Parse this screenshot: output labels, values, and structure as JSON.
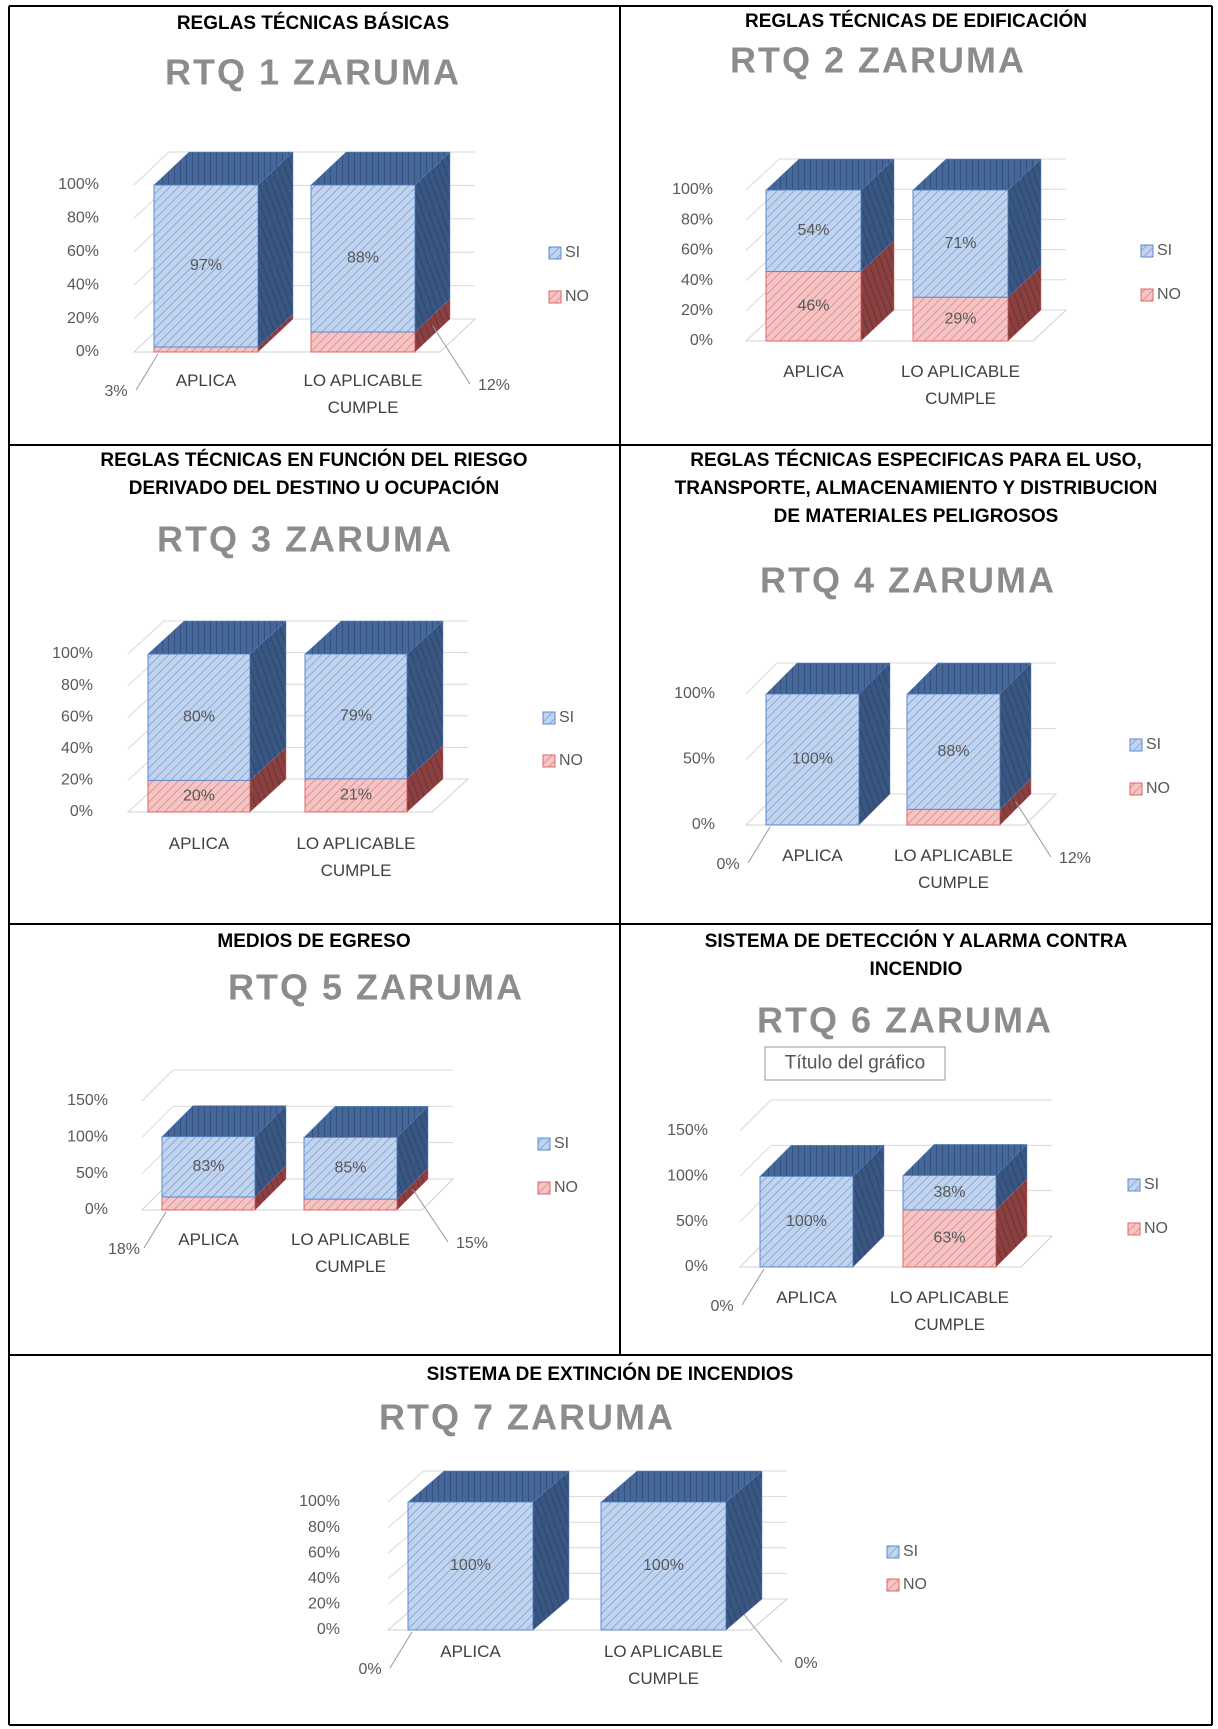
{
  "chart_data": [
    {
      "type": "bar3d",
      "heading": [
        "REGLAS TÉCNICAS BÁSICAS"
      ],
      "title": "RTQ 1 ZARUMA",
      "categories": [
        "APLICA",
        "LO APLICABLE CUMPLE"
      ],
      "series": [
        {
          "name": "SI",
          "color": "#5b8bd0",
          "values": [
            97,
            88
          ],
          "value_labels": [
            "97%",
            "88%"
          ]
        },
        {
          "name": "NO",
          "color": "#e06666",
          "values": [
            3,
            12
          ],
          "value_labels": [
            "3%",
            "12%"
          ]
        }
      ],
      "ylim": [
        0,
        100
      ],
      "yticks": [
        {
          "value": 0,
          "label": "0%"
        },
        {
          "value": 20,
          "label": "20%"
        },
        {
          "value": 40,
          "label": "40%"
        },
        {
          "value": 60,
          "label": "60%"
        },
        {
          "value": 80,
          "label": "80%"
        },
        {
          "value": 100,
          "label": "100%"
        }
      ],
      "grid": true,
      "legend": "right"
    },
    {
      "type": "bar3d",
      "heading": [
        "REGLAS TÉCNICAS DE EDIFICACIÓN"
      ],
      "title": "RTQ 2 ZARUMA",
      "categories": [
        "APLICA",
        "LO APLICABLE CUMPLE"
      ],
      "series": [
        {
          "name": "SI",
          "color": "#5b8bd0",
          "values": [
            54,
            71
          ],
          "value_labels": [
            "54%",
            "71%"
          ]
        },
        {
          "name": "NO",
          "color": "#e06666",
          "values": [
            46,
            29
          ],
          "value_labels": [
            "46%",
            "29%"
          ]
        }
      ],
      "ylim": [
        0,
        100
      ],
      "yticks": [
        {
          "value": 0,
          "label": "0%"
        },
        {
          "value": 20,
          "label": "20%"
        },
        {
          "value": 40,
          "label": "40%"
        },
        {
          "value": 60,
          "label": "60%"
        },
        {
          "value": 80,
          "label": "80%"
        },
        {
          "value": 100,
          "label": "100%"
        }
      ],
      "grid": true,
      "legend": "right"
    },
    {
      "type": "bar3d",
      "heading": [
        "REGLAS TÉCNICAS EN FUNCIÓN DEL RIESGO",
        "DERIVADO DEL DESTINO U OCUPACIÓN"
      ],
      "title": "RTQ 3 ZARUMA",
      "categories": [
        "APLICA",
        "LO APLICABLE CUMPLE"
      ],
      "series": [
        {
          "name": "SI",
          "color": "#5b8bd0",
          "values": [
            80,
            79
          ],
          "value_labels": [
            "80%",
            "79%"
          ]
        },
        {
          "name": "NO",
          "color": "#e06666",
          "values": [
            20,
            21
          ],
          "value_labels": [
            "20%",
            "21%"
          ]
        }
      ],
      "ylim": [
        0,
        100
      ],
      "yticks": [
        {
          "value": 0,
          "label": "0%"
        },
        {
          "value": 20,
          "label": "20%"
        },
        {
          "value": 40,
          "label": "40%"
        },
        {
          "value": 60,
          "label": "60%"
        },
        {
          "value": 80,
          "label": "80%"
        },
        {
          "value": 100,
          "label": "100%"
        }
      ],
      "grid": true,
      "legend": "right"
    },
    {
      "type": "bar3d",
      "heading": [
        "REGLAS TÉCNICAS ESPECIFICAS PARA EL USO,",
        "TRANSPORTE, ALMACENAMIENTO Y DISTRIBUCION",
        "DE MATERIALES PELIGROSOS"
      ],
      "title": "RTQ 4 ZARUMA",
      "categories": [
        "APLICA",
        "LO APLICABLE CUMPLE"
      ],
      "series": [
        {
          "name": "SI",
          "color": "#5b8bd0",
          "values": [
            100,
            88
          ],
          "value_labels": [
            "100%",
            "88%"
          ]
        },
        {
          "name": "NO",
          "color": "#e06666",
          "values": [
            0,
            12
          ],
          "value_labels": [
            "0%",
            "12%"
          ]
        }
      ],
      "ylim": [
        0,
        100
      ],
      "yticks": [
        {
          "value": 0,
          "label": "0%"
        },
        {
          "value": 50,
          "label": "50%"
        },
        {
          "value": 100,
          "label": "100%"
        }
      ],
      "grid": true,
      "legend": "right"
    },
    {
      "type": "bar3d",
      "heading": [
        "MEDIOS DE EGRESO"
      ],
      "title": "RTQ 5 ZARUMA",
      "categories": [
        "APLICA",
        "LO APLICABLE CUMPLE"
      ],
      "series": [
        {
          "name": "SI",
          "color": "#5b8bd0",
          "values": [
            83,
            85
          ],
          "value_labels": [
            "83%",
            "85%"
          ]
        },
        {
          "name": "NO",
          "color": "#e06666",
          "values": [
            18,
            15
          ],
          "value_labels": [
            "18%",
            "15%"
          ]
        }
      ],
      "ylim": [
        0,
        150
      ],
      "yticks": [
        {
          "value": 0,
          "label": "0%"
        },
        {
          "value": 50,
          "label": "50%"
        },
        {
          "value": 100,
          "label": "100%"
        },
        {
          "value": 150,
          "label": "150%"
        }
      ],
      "grid": true,
      "legend": "right"
    },
    {
      "type": "bar3d",
      "heading": [
        "SISTEMA DE DETECCIÓN Y ALARMA CONTRA",
        "INCENDIO"
      ],
      "title": "RTQ 6 ZARUMA",
      "tooltip": "Título del gráfico",
      "categories": [
        "APLICA",
        "LO APLICABLE CUMPLE"
      ],
      "series": [
        {
          "name": "SI",
          "color": "#5b8bd0",
          "values": [
            100,
            38
          ],
          "value_labels": [
            "100%",
            "38%"
          ]
        },
        {
          "name": "NO",
          "color": "#e06666",
          "values": [
            0,
            63
          ],
          "value_labels": [
            "0%",
            "63%"
          ]
        }
      ],
      "ylim": [
        0,
        150
      ],
      "yticks": [
        {
          "value": 0,
          "label": "0%"
        },
        {
          "value": 50,
          "label": "50%"
        },
        {
          "value": 100,
          "label": "100%"
        },
        {
          "value": 150,
          "label": "150%"
        }
      ],
      "grid": true,
      "legend": "right"
    },
    {
      "type": "bar3d",
      "heading": [
        "SISTEMA DE EXTINCIÓN DE INCENDIOS"
      ],
      "title": "RTQ 7 ZARUMA",
      "categories": [
        "APLICA",
        "LO APLICABLE CUMPLE"
      ],
      "series": [
        {
          "name": "SI",
          "color": "#5b8bd0",
          "values": [
            100,
            100
          ],
          "value_labels": [
            "100%",
            "100%"
          ]
        },
        {
          "name": "NO",
          "color": "#e06666",
          "values": [
            0,
            0
          ],
          "value_labels": [
            "0%",
            "0%"
          ]
        }
      ],
      "ylim": [
        0,
        100
      ],
      "yticks": [
        {
          "value": 0,
          "label": "0%"
        },
        {
          "value": 20,
          "label": "20%"
        },
        {
          "value": 40,
          "label": "40%"
        },
        {
          "value": 60,
          "label": "60%"
        },
        {
          "value": 80,
          "label": "80%"
        },
        {
          "value": 100,
          "label": "100%"
        }
      ],
      "grid": true,
      "legend": "right"
    }
  ]
}
